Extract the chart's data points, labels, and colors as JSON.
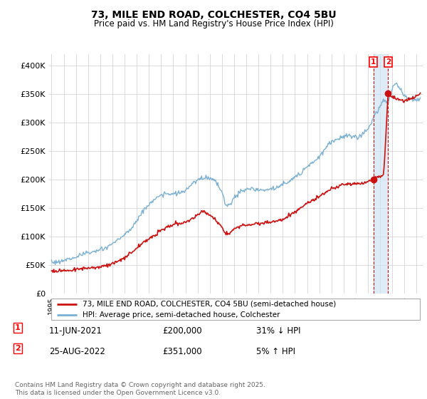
{
  "title": "73, MILE END ROAD, COLCHESTER, CO4 5BU",
  "subtitle": "Price paid vs. HM Land Registry's House Price Index (HPI)",
  "ylim": [
    0,
    420000
  ],
  "yticks": [
    0,
    50000,
    100000,
    150000,
    200000,
    250000,
    300000,
    350000,
    400000
  ],
  "ytick_labels": [
    "£0",
    "£50K",
    "£100K",
    "£150K",
    "£200K",
    "£250K",
    "£300K",
    "£350K",
    "£400K"
  ],
  "hpi_color": "#7ab0d4",
  "price_color": "#cc1111",
  "vline_color": "#cc1111",
  "shade_color": "#d0e4f5",
  "legend_label_price": "73, MILE END ROAD, COLCHESTER, CO4 5BU (semi-detached house)",
  "legend_label_hpi": "HPI: Average price, semi-detached house, Colchester",
  "annotation1_date": "11-JUN-2021",
  "annotation1_price": "£200,000",
  "annotation1_pct": "31% ↓ HPI",
  "annotation2_date": "25-AUG-2022",
  "annotation2_price": "£351,000",
  "annotation2_pct": "5% ↑ HPI",
  "footnote": "Contains HM Land Registry data © Crown copyright and database right 2025.\nThis data is licensed under the Open Government Licence v3.0.",
  "point1_x": 2021.44,
  "point1_y": 200000,
  "point2_x": 2022.65,
  "point2_y": 351000,
  "xlim_left": 1994.8,
  "xlim_right": 2025.5
}
